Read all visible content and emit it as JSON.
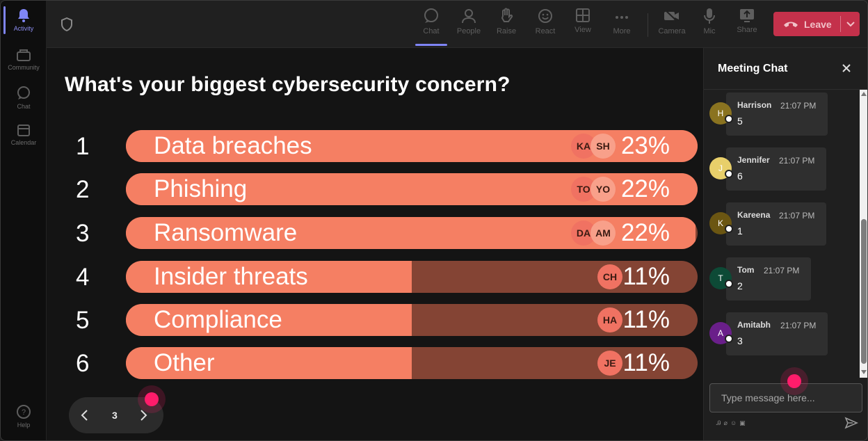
{
  "rail": {
    "items": [
      {
        "label": "Activity",
        "icon": "bell-icon",
        "active": true
      },
      {
        "label": "Community",
        "icon": "community-icon",
        "active": false
      },
      {
        "label": "Chat",
        "icon": "chat-icon",
        "active": false
      },
      {
        "label": "Calendar",
        "icon": "calendar-icon",
        "active": false
      }
    ],
    "help_label": "Help"
  },
  "toolbar": {
    "items": [
      {
        "label": "Chat",
        "icon": "chat-icon",
        "active": true
      },
      {
        "label": "People",
        "icon": "people-icon"
      },
      {
        "label": "Raise",
        "icon": "raise-hand-icon"
      },
      {
        "label": "React",
        "icon": "emoji-icon"
      },
      {
        "label": "View",
        "icon": "grid-view-icon"
      },
      {
        "label": "More",
        "icon": "more-icon"
      },
      {
        "label": "Camera",
        "icon": "camera-off-icon"
      },
      {
        "label": "Mic",
        "icon": "mic-icon"
      },
      {
        "label": "Share",
        "icon": "share-icon"
      }
    ],
    "leave_label": "Leave"
  },
  "poll": {
    "question": "What's your biggest cybersecurity concern?",
    "options": [
      {
        "rank": "1",
        "label": "Data breaches",
        "percent_label": "23%",
        "fill": 1.0,
        "avatars": [
          "KA",
          "SH"
        ]
      },
      {
        "rank": "2",
        "label": "Phishing",
        "percent_label": "22%",
        "fill": 1.0,
        "avatars": [
          "TO",
          "YO"
        ]
      },
      {
        "rank": "3",
        "label": "Ransomware",
        "percent_label": "22%",
        "fill": 0.996,
        "avatars": [
          "DA",
          "AM"
        ]
      },
      {
        "rank": "4",
        "label": "Insider threats",
        "percent_label": "11%",
        "fill": 0.5,
        "avatars": [
          "CH"
        ]
      },
      {
        "rank": "5",
        "label": "Compliance",
        "percent_label": "11%",
        "fill": 0.5,
        "avatars": [
          "HA"
        ]
      },
      {
        "rank": "6",
        "label": "Other",
        "percent_label": "11%",
        "fill": 0.5,
        "avatars": [
          "JE"
        ]
      }
    ],
    "colors": {
      "fill": "#f57f63",
      "track": "#844434"
    }
  },
  "pager": {
    "page": "3"
  },
  "chat": {
    "title": "Meeting Chat",
    "messages": [
      {
        "initial": "H",
        "name": "Harrison",
        "time": "21:07 PM",
        "text": "5",
        "color": "#8a7320"
      },
      {
        "initial": "J",
        "name": "Jennifer",
        "time": "21:07 PM",
        "text": "6",
        "color": "#e8cf6a"
      },
      {
        "initial": "K",
        "name": "Kareena",
        "time": "21:07 PM",
        "text": "1",
        "color": "#6b5612"
      },
      {
        "initial": "T",
        "name": "Tom",
        "time": "21:07 PM",
        "text": "2",
        "color": "#0d4a36"
      },
      {
        "initial": "A",
        "name": "Amitabh",
        "time": "21:07 PM",
        "text": "3",
        "color": "#6a1f8a"
      }
    ],
    "input_placeholder": "Type message here..."
  }
}
